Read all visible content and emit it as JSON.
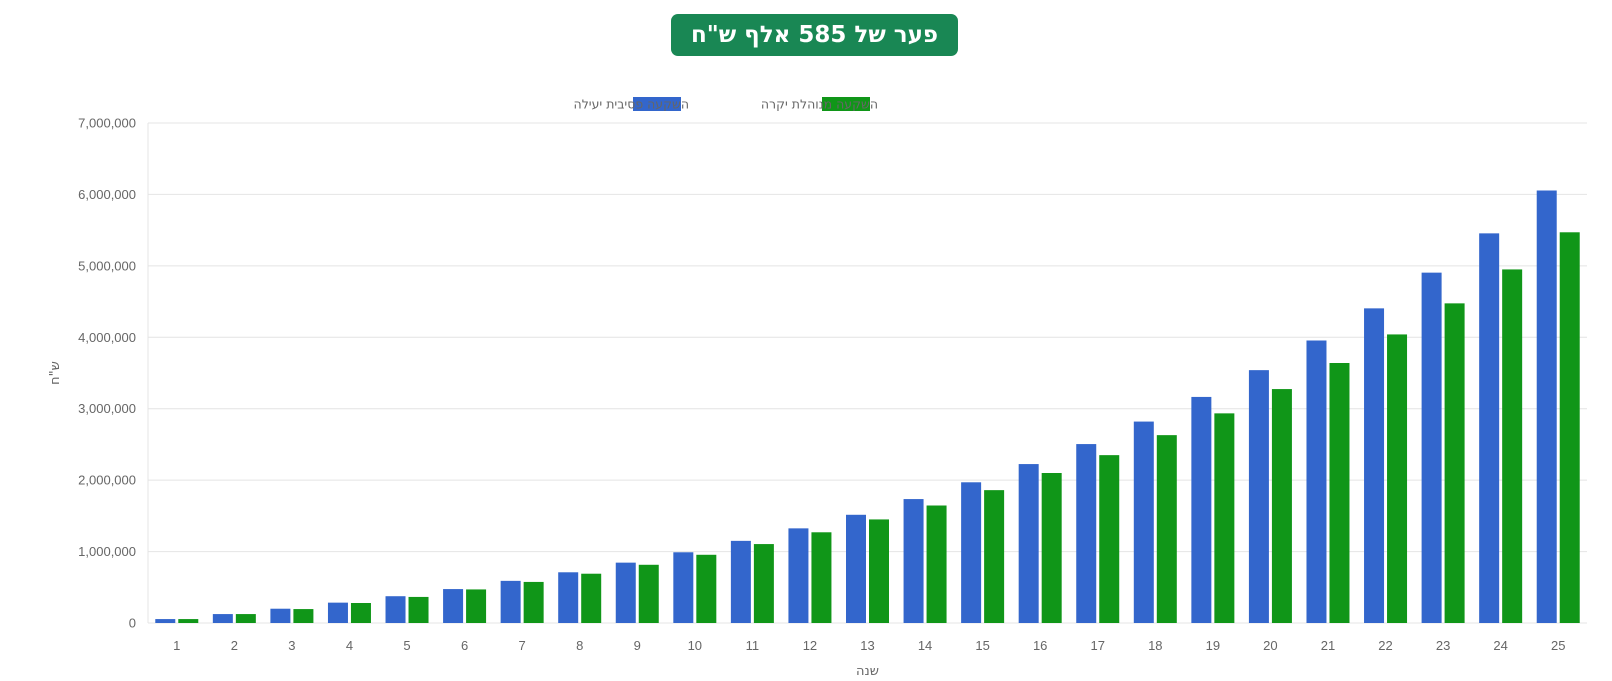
{
  "title": "פער של 585 אלף ש\"ח",
  "chart_data": {
    "type": "bar",
    "categories": [
      "1",
      "2",
      "3",
      "4",
      "5",
      "6",
      "7",
      "8",
      "9",
      "10",
      "11",
      "12",
      "13",
      "14",
      "15",
      "16",
      "17",
      "18",
      "19",
      "20",
      "21",
      "22",
      "23",
      "24",
      "25"
    ],
    "series": [
      {
        "name": "השקעה פסיבית יעילה",
        "color": "#3366cc",
        "values": [
          55000,
          125000,
          200000,
          285000,
          375000,
          475000,
          590000,
          710000,
          845000,
          990000,
          1150000,
          1325000,
          1515000,
          1735000,
          1970000,
          2225000,
          2505000,
          2820000,
          3165000,
          3540000,
          3955000,
          4405000,
          4905000,
          5455000,
          6055000
        ]
      },
      {
        "name": "השקעה מנוהלת יקרה",
        "color": "#109618",
        "values": [
          55000,
          125000,
          195000,
          280000,
          365000,
          470000,
          575000,
          690000,
          815000,
          955000,
          1105000,
          1270000,
          1450000,
          1645000,
          1860000,
          2100000,
          2350000,
          2630000,
          2935000,
          3275000,
          3640000,
          4040000,
          4475000,
          4950000,
          5470000
        ]
      }
    ],
    "xlabel": "שנה",
    "ylabel": "ש\"ח",
    "ylim": [
      0,
      7000000
    ],
    "yticks": [
      0,
      1000000,
      2000000,
      3000000,
      4000000,
      5000000,
      6000000,
      7000000
    ],
    "grid": true,
    "legend": "top"
  }
}
